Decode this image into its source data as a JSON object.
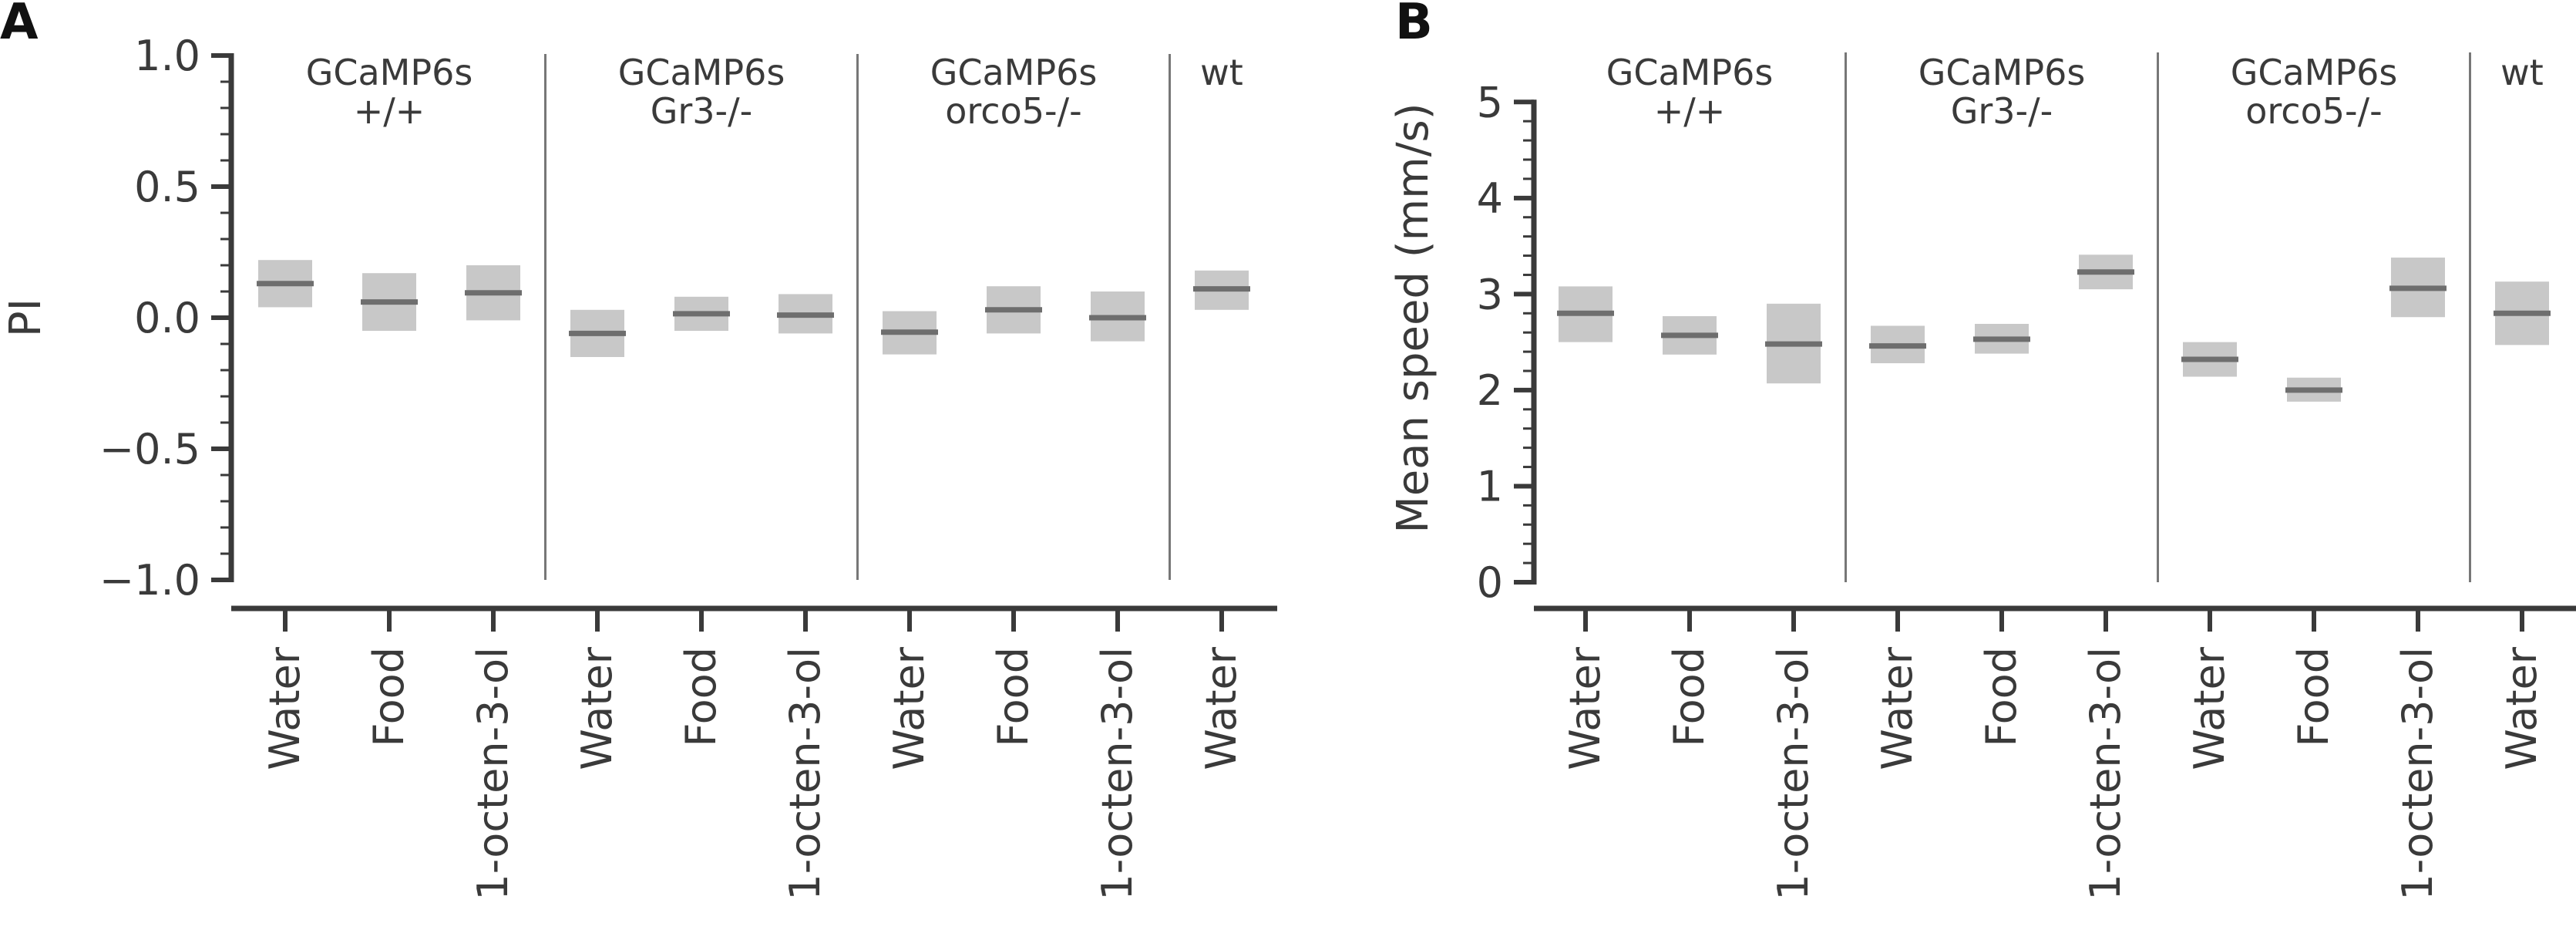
{
  "figure": {
    "panel_labels": [
      "A",
      "B"
    ]
  },
  "chart_data": [
    {
      "type": "bar",
      "panel": "A",
      "ylabel": "PI",
      "ylim": [
        -1.0,
        1.0
      ],
      "yticks": [
        "1.0",
        "0.5",
        "0.0",
        "−0.5",
        "−1.0"
      ],
      "ytick_values": [
        1.0,
        0.5,
        0.0,
        -0.5,
        -1.0
      ],
      "groups": [
        {
          "label_lines": [
            "GCaMP6s",
            "+/+"
          ],
          "categories": [
            "Water",
            "Food",
            "1-octen-3-ol"
          ]
        },
        {
          "label_lines": [
            "GCaMP6s",
            "Gr3-/-"
          ],
          "categories": [
            "Water",
            "Food",
            "1-octen-3-ol"
          ]
        },
        {
          "label_lines": [
            "GCaMP6s",
            "orco5-/-"
          ],
          "categories": [
            "Water",
            "Food",
            "1-octen-3-ol"
          ]
        },
        {
          "label_lines": [
            "wt"
          ],
          "categories": [
            "Water"
          ]
        }
      ],
      "categories": [
        "Water",
        "Food",
        "1-octen-3-ol",
        "Water",
        "Food",
        "1-octen-3-ol",
        "Water",
        "Food",
        "1-octen-3-ol",
        "Water"
      ],
      "means": [
        0.13,
        0.06,
        0.095,
        -0.06,
        0.015,
        0.01,
        -0.055,
        0.03,
        0.0,
        0.11
      ],
      "ci_low": [
        0.04,
        -0.05,
        -0.01,
        -0.15,
        -0.05,
        -0.06,
        -0.14,
        -0.06,
        -0.09,
        0.03
      ],
      "ci_high": [
        0.22,
        0.17,
        0.2,
        0.03,
        0.08,
        0.09,
        0.025,
        0.12,
        0.1,
        0.18
      ]
    },
    {
      "type": "bar",
      "panel": "B",
      "ylabel": "Mean speed (mm/s)",
      "ylim": [
        0,
        5.5
      ],
      "yticks": [
        "5",
        "4",
        "3",
        "2",
        "1",
        "0"
      ],
      "ytick_values": [
        5,
        4,
        3,
        2,
        1,
        0
      ],
      "groups": [
        {
          "label_lines": [
            "GCaMP6s",
            "+/+"
          ],
          "categories": [
            "Water",
            "Food",
            "1-octen-3-ol"
          ]
        },
        {
          "label_lines": [
            "GCaMP6s",
            "Gr3-/-"
          ],
          "categories": [
            "Water",
            "Food",
            "1-octen-3-ol"
          ]
        },
        {
          "label_lines": [
            "GCaMP6s",
            "orco5-/-"
          ],
          "categories": [
            "Water",
            "Food",
            "1-octen-3-ol"
          ]
        },
        {
          "label_lines": [
            "wt"
          ],
          "categories": [
            "Water"
          ]
        }
      ],
      "categories": [
        "Water",
        "Food",
        "1-octen-3-ol",
        "Water",
        "Food",
        "1-octen-3-ol",
        "Water",
        "Food",
        "1-octen-3-ol",
        "Water"
      ],
      "means": [
        2.8,
        2.57,
        2.48,
        2.46,
        2.53,
        3.23,
        2.32,
        2.0,
        3.06,
        2.8
      ],
      "ci_low": [
        2.5,
        2.37,
        2.07,
        2.28,
        2.38,
        3.05,
        2.14,
        1.88,
        2.76,
        2.47
      ],
      "ci_high": [
        3.08,
        2.77,
        2.9,
        2.67,
        2.69,
        3.41,
        2.5,
        2.13,
        3.38,
        3.13
      ]
    }
  ],
  "colors": {
    "ci_fill": "#c8c8c8",
    "mean_line": "#6e6e6e",
    "axis": "#3a3a3a",
    "divider": "#777777"
  }
}
